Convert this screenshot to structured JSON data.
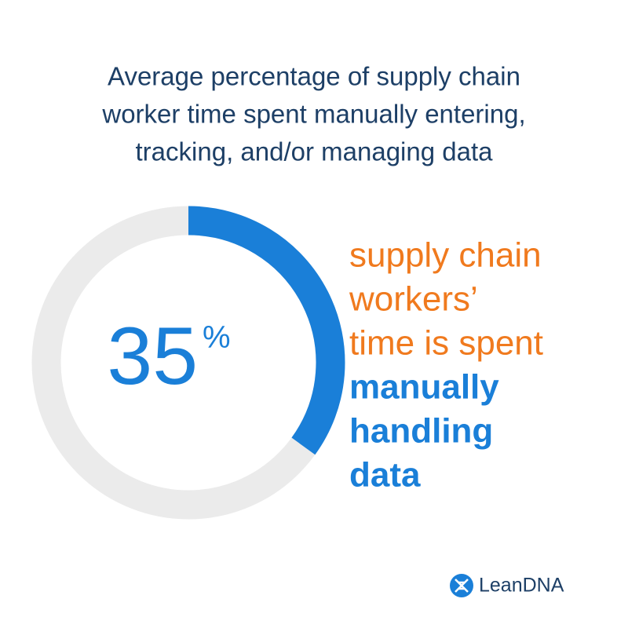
{
  "chart_data": {
    "type": "donut",
    "title_lines": [
      "Average percentage of supply chain",
      "worker time spent manually entering,",
      "tracking, and/or managing data"
    ],
    "values": [
      35
    ],
    "value_labels": [
      "35%"
    ],
    "total": 100,
    "color": "#1a7fd8",
    "annotation_lines": [
      "supply chain",
      "workers’",
      "time is spent"
    ],
    "emphasis_lines": [
      "manually",
      "handling",
      "data"
    ]
  },
  "logo": "LeanDNA"
}
